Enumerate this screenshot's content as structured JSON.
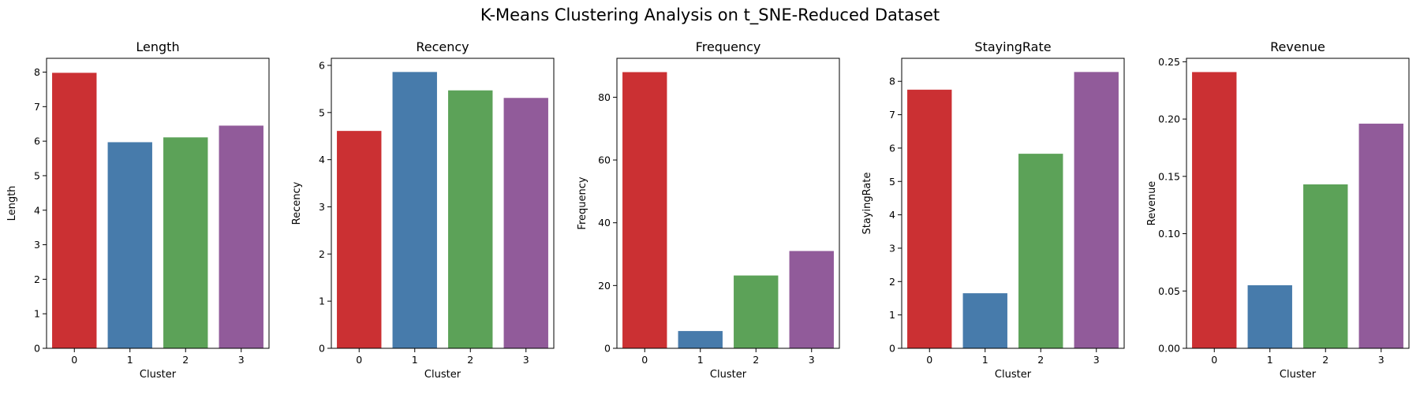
{
  "suptitle": "K-Means Clustering Analysis on t_SNE-Reduced Dataset",
  "colors": [
    "#cb3033",
    "#477bab",
    "#5ca258",
    "#915b9a"
  ],
  "chart_data": [
    {
      "type": "bar",
      "title": "Length",
      "xlabel": "Cluster",
      "ylabel": "Length",
      "categories": [
        "0",
        "1",
        "2",
        "3"
      ],
      "values": [
        7.98,
        5.97,
        6.11,
        6.45
      ],
      "ylim": [
        0,
        8.4
      ],
      "yticks": [
        0,
        1,
        2,
        3,
        4,
        5,
        6,
        7,
        8
      ],
      "ytick_labels": [
        "0",
        "1",
        "2",
        "3",
        "4",
        "5",
        "6",
        "7",
        "8"
      ]
    },
    {
      "type": "bar",
      "title": "Recency",
      "xlabel": "Cluster",
      "ylabel": "Recency",
      "categories": [
        "0",
        "1",
        "2",
        "3"
      ],
      "values": [
        4.61,
        5.86,
        5.47,
        5.31
      ],
      "ylim": [
        0,
        6.15
      ],
      "yticks": [
        0,
        1,
        2,
        3,
        4,
        5,
        6
      ],
      "ytick_labels": [
        "0",
        "1",
        "2",
        "3",
        "4",
        "5",
        "6"
      ]
    },
    {
      "type": "bar",
      "title": "Frequency",
      "xlabel": "Cluster",
      "ylabel": "Frequency",
      "categories": [
        "0",
        "1",
        "2",
        "3"
      ],
      "values": [
        88,
        5.5,
        23.2,
        31
      ],
      "ylim": [
        0,
        92.4
      ],
      "yticks": [
        0,
        20,
        40,
        60,
        80
      ],
      "ytick_labels": [
        "0",
        "20",
        "40",
        "60",
        "80"
      ]
    },
    {
      "type": "bar",
      "title": "StayingRate",
      "xlabel": "Cluster",
      "ylabel": "StayingRate",
      "categories": [
        "0",
        "1",
        "2",
        "3"
      ],
      "values": [
        7.75,
        1.65,
        5.83,
        8.28
      ],
      "ylim": [
        0,
        8.69
      ],
      "yticks": [
        0,
        1,
        2,
        3,
        4,
        5,
        6,
        7,
        8
      ],
      "ytick_labels": [
        "0",
        "1",
        "2",
        "3",
        "4",
        "5",
        "6",
        "7",
        "8"
      ]
    },
    {
      "type": "bar",
      "title": "Revenue",
      "xlabel": "Cluster",
      "ylabel": "Revenue",
      "categories": [
        "0",
        "1",
        "2",
        "3"
      ],
      "values": [
        0.241,
        0.055,
        0.143,
        0.196
      ],
      "ylim": [
        0,
        0.253
      ],
      "yticks": [
        0,
        0.05,
        0.1,
        0.15,
        0.2,
        0.25
      ],
      "ytick_labels": [
        "0.00",
        "0.05",
        "0.10",
        "0.15",
        "0.20",
        "0.25"
      ]
    }
  ]
}
